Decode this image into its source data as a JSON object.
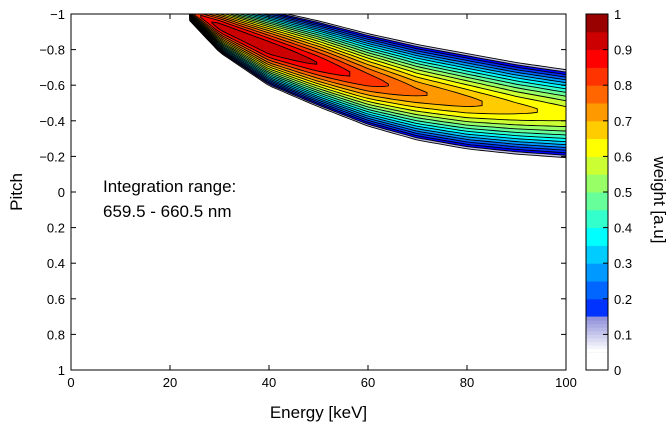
{
  "chart_data": {
    "type": "heatmap",
    "title": "",
    "xlabel": "Energy [keV]",
    "ylabel": "Pitch",
    "xlim": [
      0,
      100
    ],
    "ylim": [
      -1,
      1
    ],
    "y_reversed": true,
    "xticks": [
      0,
      20,
      40,
      60,
      80,
      100
    ],
    "yticks": [
      -1,
      -0.8,
      -0.6,
      -0.4,
      -0.2,
      0,
      0.2,
      0.4,
      0.6,
      0.8,
      1
    ],
    "xtick_labels": [
      "0",
      "20",
      "40",
      "60",
      "80",
      "100"
    ],
    "ytick_labels": [
      "−1",
      "−0.8",
      "−0.6",
      "−0.4",
      "−0.2",
      "0",
      "0.2",
      "0.4",
      "0.6",
      "0.8",
      "1"
    ],
    "colorbar": {
      "label": "weight [a.u]",
      "range": [
        0,
        1
      ],
      "ticks": [
        0,
        0.1,
        0.2,
        0.3,
        0.4,
        0.5,
        0.6,
        0.7,
        0.8,
        0.9,
        1
      ],
      "tick_labels": [
        "0",
        "0.1",
        "0.2",
        "0.3",
        "0.4",
        "0.5",
        "0.6",
        "0.7",
        "0.8",
        "0.9",
        "1"
      ],
      "colormap": "jet"
    },
    "contour_levels": [
      0.05,
      0.1,
      0.15,
      0.2,
      0.25,
      0.3,
      0.35,
      0.4,
      0.45,
      0.5,
      0.55,
      0.6,
      0.65,
      0.7,
      0.75,
      0.8,
      0.85,
      0.9,
      0.95
    ],
    "annotation": [
      "Integration range:",
      "659.5 - 660.5 nm"
    ],
    "weight_ridge": {
      "energy": [
        24,
        30,
        40,
        50,
        60,
        70,
        80,
        90,
        100
      ],
      "pitch_center": [
        -1.02,
        -0.93,
        -0.81,
        -0.72,
        -0.63,
        -0.56,
        -0.51,
        -0.47,
        -0.44
      ],
      "pitch_half_width": [
        0.06,
        0.15,
        0.22,
        0.25,
        0.27,
        0.28,
        0.28,
        0.27,
        0.26
      ],
      "peak_weight": [
        0.82,
        0.93,
        0.95,
        0.9,
        0.83,
        0.76,
        0.72,
        0.67,
        0.63
      ]
    }
  }
}
